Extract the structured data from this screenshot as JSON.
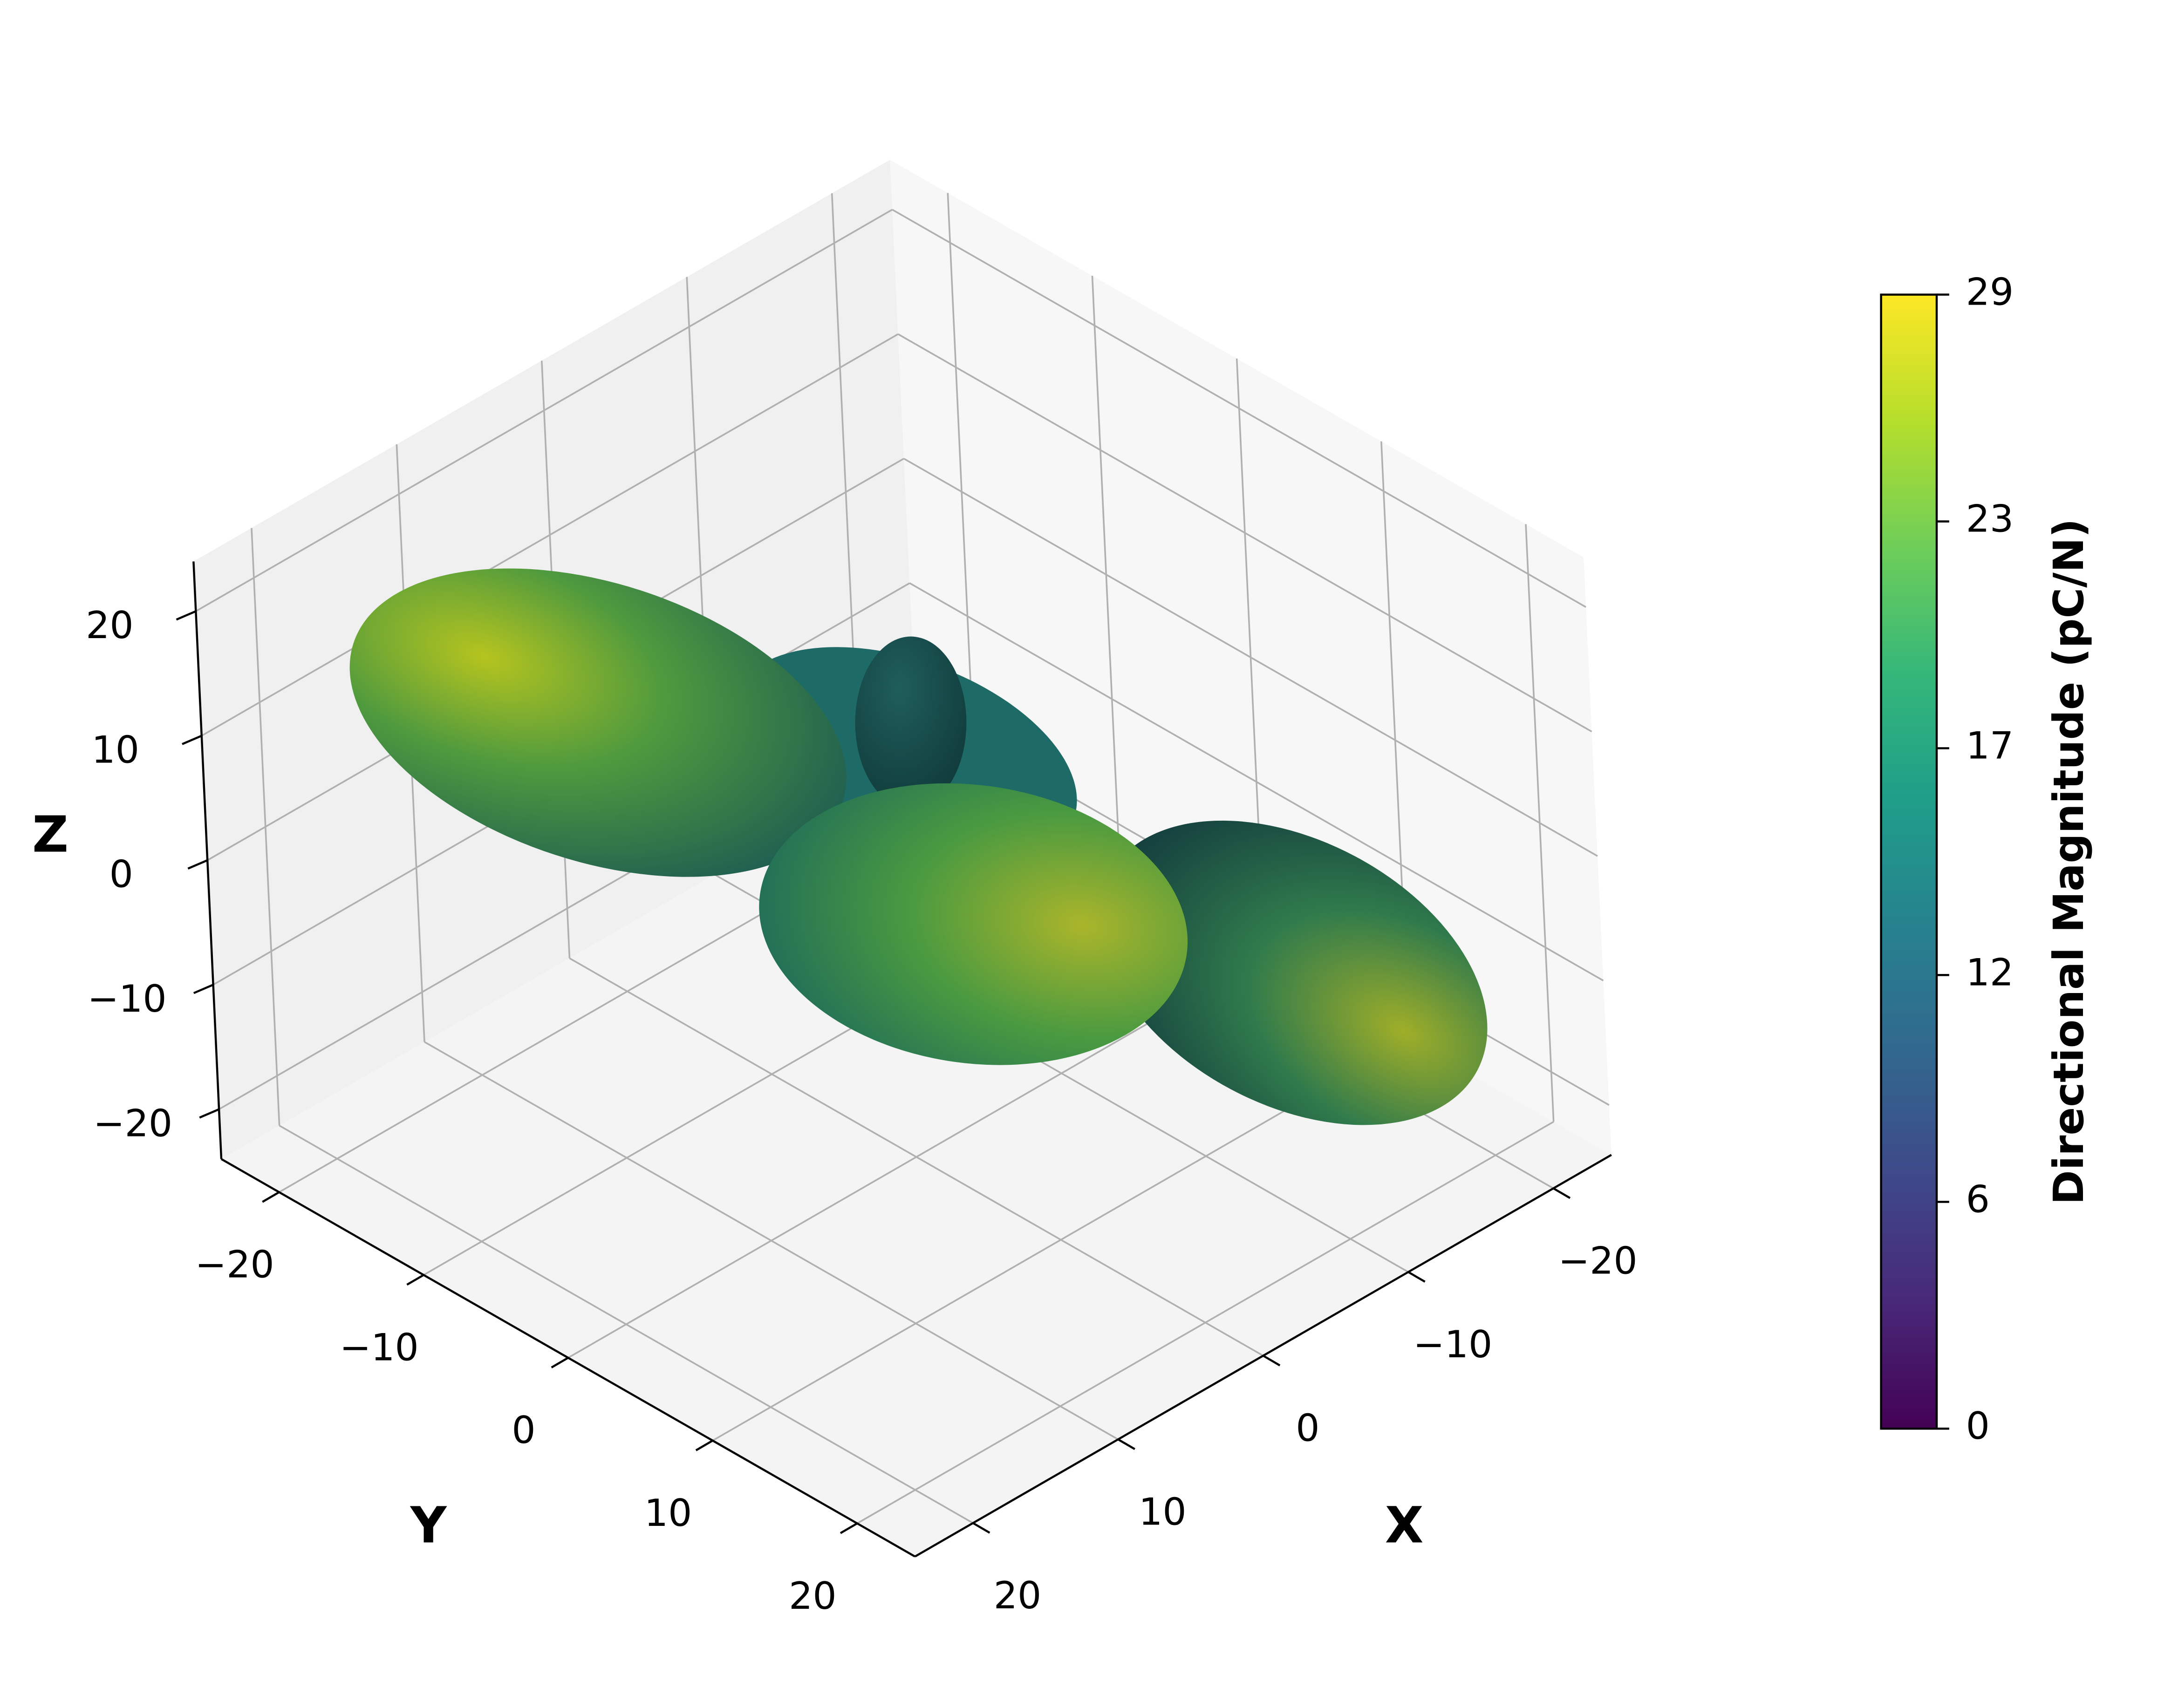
{
  "chart_data": {
    "type": "surface3d",
    "xlabel": "X",
    "ylabel": "Y",
    "zlabel": "Z",
    "xlim": [
      -24,
      24
    ],
    "ylim": [
      -24,
      24
    ],
    "zlim": [
      -24,
      24
    ],
    "xticks": [
      {
        "value": -20,
        "label": "−20"
      },
      {
        "value": -10,
        "label": "−10"
      },
      0,
      10,
      20
    ],
    "yticks": [
      {
        "value": -20,
        "label": "−20"
      },
      {
        "value": -10,
        "label": "−10"
      },
      0,
      10,
      20
    ],
    "zticks": [
      {
        "value": -20,
        "label": "−20"
      },
      {
        "value": -10,
        "label": "−10"
      },
      0,
      10,
      20
    ],
    "grid": true,
    "colormap": "viridis",
    "colorbar": {
      "label": "Directional Magnitude (pC/N)",
      "lim": [
        0,
        29
      ],
      "ticks": [
        0,
        {
          "value": 5.8,
          "label": "6"
        },
        {
          "value": 11.6,
          "label": "12"
        },
        {
          "value": 17.4,
          "label": "17"
        },
        {
          "value": 23.2,
          "label": "23"
        },
        29
      ]
    }
  }
}
